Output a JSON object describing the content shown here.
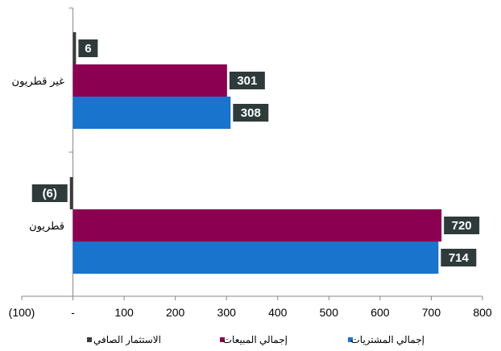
{
  "chart_data": {
    "type": "bar",
    "orientation": "horizontal",
    "categories": [
      "غير قطريون",
      "قطريون"
    ],
    "series": [
      {
        "name": "الاستثمار الصافي",
        "color": "#3a3a3a",
        "values": [
          6,
          -6
        ],
        "labels": [
          "6",
          "(6)"
        ]
      },
      {
        "name": "إجمالي المبيعات",
        "color": "#8b0050",
        "values": [
          301,
          720
        ],
        "labels": [
          "301",
          "720"
        ]
      },
      {
        "name": "إجمالي المشتريات",
        "color": "#1874cd",
        "values": [
          308,
          714
        ],
        "labels": [
          "308",
          "714"
        ]
      }
    ],
    "x_ticks": [
      "(100)",
      "-",
      "100",
      "200",
      "300",
      "400",
      "500",
      "600",
      "700",
      "800"
    ],
    "xlim": [
      -100,
      800
    ],
    "grid": false,
    "legend_position": "bottom",
    "data_label_bg": "#2f3b3b"
  }
}
